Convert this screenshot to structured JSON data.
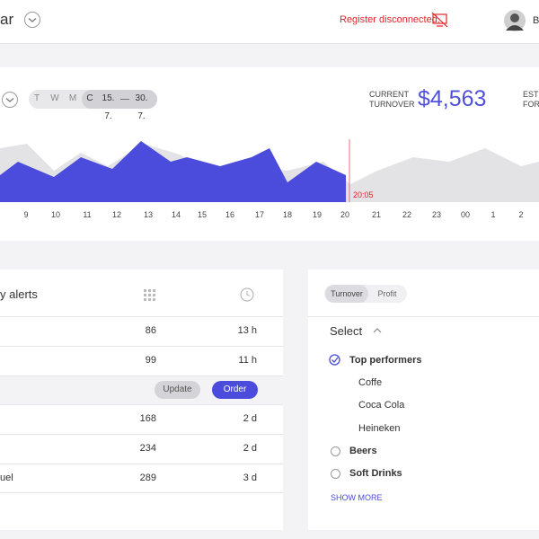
{
  "header": {
    "title": "ar",
    "status": "Register disconnected.",
    "user": "B"
  },
  "turnover": {
    "periods": [
      "T",
      "W",
      "M",
      "C"
    ],
    "range_start": "15. 7.",
    "range_end": "30. 7.",
    "label_lines": [
      "CURRENT",
      "TURNOVER"
    ],
    "value": "$4,563",
    "next_label_lines": [
      "ESTI",
      "FOR"
    ],
    "now_label": "20:05",
    "hours": [
      "9",
      "10",
      "11",
      "12",
      "13",
      "14",
      "15",
      "16",
      "17",
      "18",
      "19",
      "20",
      "21",
      "22",
      "23",
      "00",
      "1",
      "2"
    ]
  },
  "alerts": {
    "title": "y alerts",
    "actions": [
      "Update",
      "Order"
    ],
    "rows": [
      {
        "quantity": 86,
        "time": "13 h"
      },
      {
        "quantity": 99,
        "time": "11 h"
      },
      {
        "quantity": 168,
        "time": "2 d"
      },
      {
        "quantity": 234,
        "time": "2 d"
      },
      {
        "name": "uel",
        "quantity": 289,
        "time": "3 d"
      }
    ]
  },
  "selection": {
    "tabs": [
      "Turnover",
      "Profit"
    ],
    "heading": "Select",
    "groups": [
      {
        "name": "Top performers",
        "items": [
          "Coffe",
          "Coca Cola",
          "Heineken"
        ]
      },
      {
        "name": "Beers"
      },
      {
        "name": "Soft Drinks"
      }
    ],
    "show_more": "SHOW MORE"
  }
}
